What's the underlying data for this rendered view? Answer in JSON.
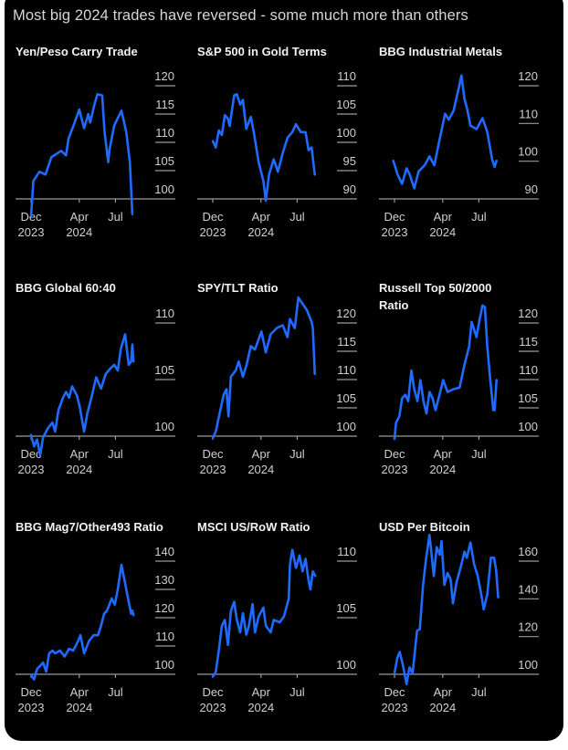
{
  "header": {
    "title": "Most big 2024 trades have reversed - some much more than others"
  },
  "colors": {
    "background": "#000000",
    "line": "#1f6bff",
    "axis": "#9a9a9a",
    "text": "#cfcfcf",
    "title": "#f2f2f2"
  },
  "chart_data": [
    {
      "type": "line",
      "title_lines": [
        "Yen/Peso Carry Trade"
      ],
      "y_ticks": [
        "120",
        "115",
        "110",
        "105",
        "100"
      ],
      "ylim": [
        100,
        120
      ],
      "x_ticks": [
        {
          "month": "Dec",
          "year": "2023",
          "t": 0
        },
        {
          "month": "Apr",
          "year": "2024",
          "t": 4
        },
        {
          "month": "Jul",
          "year": "",
          "t": 7
        }
      ],
      "x_units": "months since Dec 2023",
      "points": [
        [
          0,
          97
        ],
        [
          0.2,
          103.2
        ],
        [
          0.7,
          104.8
        ],
        [
          1.2,
          104.3
        ],
        [
          1.7,
          107.4
        ],
        [
          2.5,
          108.5
        ],
        [
          2.9,
          107.7
        ],
        [
          3.1,
          110.6
        ],
        [
          3.6,
          113.4
        ],
        [
          4.0,
          115.8
        ],
        [
          4.4,
          112.5
        ],
        [
          4.75,
          115
        ],
        [
          4.9,
          113.5
        ],
        [
          5.25,
          116.6
        ],
        [
          5.5,
          118.5
        ],
        [
          5.9,
          118.3
        ],
        [
          6.1,
          111.8
        ],
        [
          6.4,
          106.5
        ],
        [
          6.5,
          108.6
        ],
        [
          6.9,
          113
        ],
        [
          7.5,
          115.6
        ],
        [
          7.9,
          111.8
        ],
        [
          8.2,
          106.5
        ],
        [
          8.4,
          97.3
        ]
      ]
    },
    {
      "type": "line",
      "title_lines": [
        "S&P 500 in Gold Terms"
      ],
      "y_ticks": [
        "110",
        "105",
        "100",
        "95",
        "90"
      ],
      "ylim": [
        90,
        110
      ],
      "x_ticks": [
        {
          "month": "Dec",
          "year": "2023",
          "t": 0
        },
        {
          "month": "Apr",
          "year": "2024",
          "t": 4
        },
        {
          "month": "Jul",
          "year": "",
          "t": 7
        }
      ],
      "x_units": "months since Dec 2023",
      "points": [
        [
          0,
          100.2
        ],
        [
          0.25,
          99.1
        ],
        [
          0.5,
          102.1
        ],
        [
          0.76,
          101.3
        ],
        [
          1.0,
          104.8
        ],
        [
          1.26,
          104.2
        ],
        [
          1.4,
          102.9
        ],
        [
          1.77,
          108.3
        ],
        [
          2.0,
          108.5
        ],
        [
          2.27,
          106.7
        ],
        [
          2.5,
          107.5
        ],
        [
          2.78,
          102.4
        ],
        [
          3.16,
          104.5
        ],
        [
          3.4,
          101.8
        ],
        [
          3.8,
          96.5
        ],
        [
          4.2,
          93.2
        ],
        [
          4.4,
          89.7
        ],
        [
          4.67,
          94.3
        ],
        [
          5.05,
          97.0
        ],
        [
          5.4,
          94.8
        ],
        [
          5.8,
          98.1
        ],
        [
          6.2,
          100.8
        ],
        [
          6.6,
          101.8
        ],
        [
          6.9,
          103.2
        ],
        [
          7.3,
          101.8
        ],
        [
          7.7,
          101.8
        ],
        [
          7.95,
          98.6
        ],
        [
          8.2,
          99.1
        ],
        [
          8.46,
          94.3
        ]
      ]
    },
    {
      "type": "line",
      "title_lines": [
        "BBG Industrial Metals"
      ],
      "y_ticks": [
        "120",
        "110",
        "100",
        "90"
      ],
      "ylim": [
        90,
        120
      ],
      "x_ticks": [
        {
          "month": "Dec",
          "year": "2023",
          "t": 0
        },
        {
          "month": "Apr",
          "year": "2024",
          "t": 4
        },
        {
          "month": "Jul",
          "year": "",
          "t": 7
        }
      ],
      "x_units": "months since Dec 2023",
      "points": [
        [
          -0.1,
          100.1
        ],
        [
          0.25,
          96.5
        ],
        [
          0.63,
          94.0
        ],
        [
          1.0,
          98.1
        ],
        [
          1.26,
          96.5
        ],
        [
          1.64,
          92.8
        ],
        [
          2.0,
          97.3
        ],
        [
          2.5,
          98.9
        ],
        [
          2.9,
          101.3
        ],
        [
          3.3,
          98.9
        ],
        [
          3.66,
          104.5
        ],
        [
          4.2,
          112.6
        ],
        [
          4.5,
          111.0
        ],
        [
          4.9,
          113.4
        ],
        [
          5.3,
          119.0
        ],
        [
          5.55,
          122.7
        ],
        [
          5.8,
          116.6
        ],
        [
          6.06,
          113.4
        ],
        [
          6.3,
          109.4
        ],
        [
          6.8,
          108.5
        ],
        [
          7.3,
          111.4
        ],
        [
          7.7,
          107.7
        ],
        [
          8.1,
          100.5
        ],
        [
          8.3,
          98.5
        ],
        [
          8.46,
          100.1
        ]
      ]
    },
    {
      "type": "line",
      "title_lines": [
        "BBG Global 60:40"
      ],
      "y_ticks": [
        "110",
        "105",
        "100"
      ],
      "ylim": [
        100,
        110
      ],
      "x_ticks": [
        {
          "month": "Dec",
          "year": "2023",
          "t": 0
        },
        {
          "month": "Apr",
          "year": "2024",
          "t": 4
        },
        {
          "month": "Jul",
          "year": "",
          "t": 7
        }
      ],
      "x_units": "months since Dec 2023",
      "points": [
        [
          0,
          100.1
        ],
        [
          0.25,
          99.1
        ],
        [
          0.5,
          99.7
        ],
        [
          0.76,
          98.3
        ],
        [
          1.0,
          99.9
        ],
        [
          1.4,
          100.7
        ],
        [
          1.77,
          101.2
        ],
        [
          2.0,
          100.4
        ],
        [
          2.27,
          102.3
        ],
        [
          2.65,
          103.4
        ],
        [
          2.9,
          103.9
        ],
        [
          3.16,
          103.4
        ],
        [
          3.4,
          104.4
        ],
        [
          3.8,
          103.6
        ],
        [
          4.04,
          102.6
        ],
        [
          4.4,
          100.4
        ],
        [
          4.67,
          102.0
        ],
        [
          5.05,
          103.6
        ],
        [
          5.4,
          105.2
        ],
        [
          5.8,
          104.2
        ],
        [
          6.2,
          105.5
        ],
        [
          6.6,
          106.0
        ],
        [
          6.9,
          106.3
        ],
        [
          7.2,
          105.8
        ],
        [
          7.45,
          107.7
        ],
        [
          7.8,
          109.0
        ],
        [
          8.1,
          106.3
        ],
        [
          8.3,
          106.6
        ],
        [
          8.4,
          108.1
        ],
        [
          8.5,
          106.6
        ]
      ]
    },
    {
      "type": "line",
      "title_lines": [
        "SPY/TLT Ratio"
      ],
      "y_ticks": [
        "120",
        "115",
        "110",
        "105",
        "100"
      ],
      "ylim": [
        100,
        120
      ],
      "x_ticks": [
        {
          "month": "Dec",
          "year": "2023",
          "t": 0
        },
        {
          "month": "Apr",
          "year": "2024",
          "t": 4
        },
        {
          "month": "Jul",
          "year": "",
          "t": 7
        }
      ],
      "x_units": "months since Dec 2023",
      "points": [
        [
          0,
          99.7
        ],
        [
          0.25,
          100.8
        ],
        [
          0.63,
          104.6
        ],
        [
          0.9,
          107.3
        ],
        [
          1.14,
          108.3
        ],
        [
          1.3,
          103.5
        ],
        [
          1.5,
          110.5
        ],
        [
          1.9,
          111.6
        ],
        [
          2.15,
          113.2
        ],
        [
          2.5,
          110.5
        ],
        [
          2.8,
          112.6
        ],
        [
          3.16,
          115.9
        ],
        [
          3.5,
          115.3
        ],
        [
          4.04,
          118.5
        ],
        [
          4.4,
          114.8
        ],
        [
          4.8,
          118.0
        ],
        [
          5.3,
          119.1
        ],
        [
          5.8,
          119.6
        ],
        [
          6.2,
          117.5
        ],
        [
          6.4,
          120.7
        ],
        [
          6.8,
          119.1
        ],
        [
          7.1,
          124.5
        ],
        [
          7.45,
          123.4
        ],
        [
          7.8,
          122.3
        ],
        [
          8.2,
          120.2
        ],
        [
          8.3,
          119.1
        ],
        [
          8.46,
          111.0
        ]
      ]
    },
    {
      "type": "line",
      "title_lines": [
        "Russell Top 50/2000",
        "Ratio"
      ],
      "y_ticks": [
        "120",
        "115",
        "110",
        "105",
        "100"
      ],
      "ylim": [
        100,
        120
      ],
      "x_ticks": [
        {
          "month": "Dec",
          "year": "2023",
          "t": 0
        },
        {
          "month": "Apr",
          "year": "2024",
          "t": 4
        },
        {
          "month": "Jul",
          "year": "",
          "t": 7
        }
      ],
      "x_units": "months since Dec 2023",
      "points": [
        [
          0,
          99.5
        ],
        [
          0.13,
          102.4
        ],
        [
          0.4,
          103.5
        ],
        [
          0.63,
          106.7
        ],
        [
          0.9,
          107.3
        ],
        [
          1.14,
          106.2
        ],
        [
          1.4,
          111.6
        ],
        [
          1.64,
          108.3
        ],
        [
          1.9,
          106.2
        ],
        [
          2.15,
          109.9
        ],
        [
          2.4,
          106.2
        ],
        [
          2.65,
          104.0
        ],
        [
          2.9,
          107.8
        ],
        [
          3.16,
          106.7
        ],
        [
          3.4,
          104.6
        ],
        [
          3.66,
          106.7
        ],
        [
          4.04,
          109.9
        ],
        [
          4.4,
          107.8
        ],
        [
          4.9,
          108.3
        ],
        [
          5.4,
          108.6
        ],
        [
          5.8,
          112.6
        ],
        [
          6.2,
          115.9
        ],
        [
          6.4,
          120.2
        ],
        [
          6.8,
          117.5
        ],
        [
          7.07,
          120.7
        ],
        [
          7.3,
          123.1
        ],
        [
          7.5,
          122.8
        ],
        [
          7.7,
          115.9
        ],
        [
          7.95,
          109.9
        ],
        [
          8.2,
          104.6
        ],
        [
          8.3,
          104.6
        ],
        [
          8.46,
          109.9
        ]
      ]
    },
    {
      "type": "line",
      "title_lines": [
        "BBG Mag7/Other493 Ratio"
      ],
      "y_ticks": [
        "140",
        "130",
        "120",
        "110",
        "100"
      ],
      "ylim": [
        100,
        140
      ],
      "x_ticks": [
        {
          "month": "Dec",
          "year": "2023",
          "t": 0
        },
        {
          "month": "Apr",
          "year": "2024",
          "t": 4
        },
        {
          "month": "Jul",
          "year": "",
          "t": 7
        }
      ],
      "x_units": "months since Dec 2023",
      "points": [
        [
          0,
          99.8
        ],
        [
          0.25,
          98.2
        ],
        [
          0.5,
          101.9
        ],
        [
          1.0,
          104.1
        ],
        [
          1.26,
          100.9
        ],
        [
          1.5,
          107.4
        ],
        [
          1.77,
          108.4
        ],
        [
          2.0,
          107.4
        ],
        [
          2.4,
          108.4
        ],
        [
          2.78,
          106.3
        ],
        [
          3.16,
          109.0
        ],
        [
          3.5,
          108.4
        ],
        [
          3.9,
          111.7
        ],
        [
          4.1,
          113.8
        ],
        [
          4.4,
          107.4
        ],
        [
          4.8,
          111.7
        ],
        [
          5.2,
          113.8
        ],
        [
          5.55,
          113.8
        ],
        [
          5.8,
          117.1
        ],
        [
          6.06,
          121.4
        ],
        [
          6.3,
          122.5
        ],
        [
          6.7,
          126.8
        ],
        [
          6.95,
          124.6
        ],
        [
          7.2,
          130.1
        ],
        [
          7.5,
          138.7
        ],
        [
          7.8,
          132.2
        ],
        [
          8.1,
          125.7
        ],
        [
          8.3,
          121.4
        ],
        [
          8.4,
          122.5
        ],
        [
          8.5,
          120.9
        ]
      ]
    },
    {
      "type": "line",
      "title_lines": [
        "MSCI US/RoW Ratio"
      ],
      "y_ticks": [
        "110",
        "105",
        "100"
      ],
      "ylim": [
        100,
        110
      ],
      "x_ticks": [
        {
          "month": "Dec",
          "year": "2023",
          "t": 0
        },
        {
          "month": "Apr",
          "year": "2024",
          "t": 4
        },
        {
          "month": "Jul",
          "year": "",
          "t": 7
        }
      ],
      "x_units": "months since Dec 2023",
      "points": [
        [
          0,
          99.8
        ],
        [
          0.25,
          100.2
        ],
        [
          0.5,
          102.1
        ],
        [
          0.76,
          104.3
        ],
        [
          1.0,
          104.8
        ],
        [
          1.26,
          102.6
        ],
        [
          1.5,
          105.6
        ],
        [
          1.77,
          106.4
        ],
        [
          2.0,
          104.8
        ],
        [
          2.27,
          103.7
        ],
        [
          2.5,
          105.4
        ],
        [
          2.78,
          103.5
        ],
        [
          3.0,
          104.3
        ],
        [
          3.3,
          106.2
        ],
        [
          3.5,
          103.7
        ],
        [
          3.8,
          105.1
        ],
        [
          4.2,
          105.9
        ],
        [
          4.4,
          104.3
        ],
        [
          4.8,
          103.7
        ],
        [
          5.05,
          104.8
        ],
        [
          5.55,
          104.6
        ],
        [
          5.9,
          105.1
        ],
        [
          6.3,
          106.7
        ],
        [
          6.4,
          109.7
        ],
        [
          6.6,
          111.0
        ],
        [
          6.9,
          109.4
        ],
        [
          7.2,
          110.5
        ],
        [
          7.45,
          109.1
        ],
        [
          7.7,
          110.2
        ],
        [
          7.95,
          108.3
        ],
        [
          8.1,
          107.5
        ],
        [
          8.3,
          109.1
        ],
        [
          8.5,
          108.7
        ]
      ]
    },
    {
      "type": "line",
      "title_lines": [
        "USD Per Bitcoin"
      ],
      "y_ticks": [
        "160",
        "140",
        "120",
        "100"
      ],
      "ylim": [
        100,
        160
      ],
      "x_ticks": [
        {
          "month": "Dec",
          "year": "2023",
          "t": 0
        },
        {
          "month": "Apr",
          "year": "2024",
          "t": 4
        },
        {
          "month": "Jul",
          "year": "",
          "t": 7
        }
      ],
      "x_units": "months since Dec 2023",
      "points": [
        [
          0,
          100.5
        ],
        [
          0.23,
          108.5
        ],
        [
          0.43,
          111.8
        ],
        [
          0.68,
          105.3
        ],
        [
          1.0,
          94.8
        ],
        [
          1.24,
          103.7
        ],
        [
          1.5,
          100.5
        ],
        [
          1.87,
          123.1
        ],
        [
          2.1,
          123.9
        ],
        [
          2.37,
          147.3
        ],
        [
          2.6,
          160.2
        ],
        [
          2.9,
          173.9
        ],
        [
          3.05,
          165
        ],
        [
          3.26,
          152.1
        ],
        [
          3.5,
          167.4
        ],
        [
          3.76,
          163.4
        ],
        [
          3.9,
          170.6
        ],
        [
          4.14,
          147.3
        ],
        [
          4.4,
          153.7
        ],
        [
          4.65,
          150.5
        ],
        [
          4.85,
          137.6
        ],
        [
          5.15,
          148.9
        ],
        [
          5.5,
          156.9
        ],
        [
          5.8,
          165
        ],
        [
          6.0,
          161.8
        ],
        [
          6.3,
          169.8
        ],
        [
          6.6,
          158.5
        ],
        [
          6.9,
          152.1
        ],
        [
          7.2,
          142.4
        ],
        [
          7.4,
          134.4
        ],
        [
          7.7,
          142.4
        ],
        [
          8.0,
          161.8
        ],
        [
          8.26,
          161.8
        ],
        [
          8.43,
          155.3
        ],
        [
          8.6,
          140.8
        ]
      ]
    }
  ]
}
